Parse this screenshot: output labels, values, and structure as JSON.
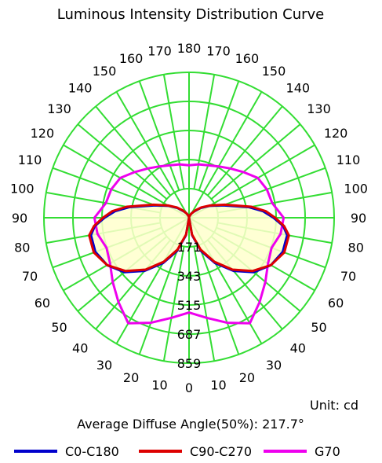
{
  "chart_data": {
    "type": "polar",
    "title": "Luminous Intensity Distribution Curve",
    "unit_label": "Unit: cd",
    "summary": "Average Diffuse Angle(50%): 217.7°",
    "radial_ticks": [
      "171",
      "343",
      "515",
      "687",
      "859"
    ],
    "radial_max": 859,
    "angle_labels_left": [
      "0",
      "10",
      "20",
      "30",
      "40",
      "50",
      "60",
      "70",
      "80",
      "90",
      "100",
      "110",
      "120",
      "130",
      "140",
      "150",
      "160",
      "170"
    ],
    "angle_labels_right": [
      "10",
      "20",
      "30",
      "40",
      "50",
      "60",
      "70",
      "80",
      "90",
      "100",
      "110",
      "120",
      "130",
      "140",
      "150",
      "160",
      "170"
    ],
    "angle_label_top": "180",
    "grid_color": "#33dd33",
    "fill_color": "#ffffcc",
    "series": [
      {
        "name": "C0-C180",
        "color": "#0000cc",
        "angles_deg": [
          0,
          10,
          20,
          30,
          40,
          50,
          60,
          70,
          80,
          85,
          90,
          95,
          100,
          110,
          120,
          130,
          140,
          150,
          160,
          170,
          180
        ],
        "values": [
          0,
          105,
          210,
          310,
          410,
          500,
          560,
          590,
          590,
          560,
          500,
          440,
          360,
          215,
          140,
          90,
          50,
          30,
          15,
          5,
          0
        ]
      },
      {
        "name": "C90-C270",
        "color": "#dd0000",
        "angles_deg": [
          0,
          10,
          20,
          30,
          40,
          50,
          60,
          70,
          80,
          85,
          90,
          95,
          100,
          110,
          120,
          130,
          140,
          150,
          160,
          170,
          180
        ],
        "values": [
          0,
          100,
          200,
          300,
          400,
          490,
          560,
          600,
          600,
          565,
          510,
          455,
          375,
          225,
          145,
          95,
          55,
          30,
          15,
          5,
          0
        ]
      },
      {
        "name": "G70",
        "color": "#ee00ee",
        "angles_deg": [
          0,
          10,
          20,
          30,
          40,
          50,
          60,
          70,
          80,
          90,
          100,
          110,
          120,
          130,
          140,
          150,
          160,
          170,
          180
        ],
        "values": [
          560,
          600,
          660,
          720,
          650,
          590,
          540,
          520,
          550,
          560,
          500,
          490,
          470,
          420,
          380,
          350,
          330,
          320,
          310
        ]
      }
    ]
  }
}
